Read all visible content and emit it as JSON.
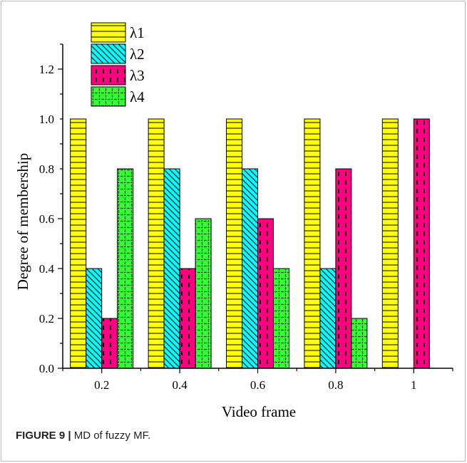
{
  "caption": {
    "label": "FIGURE 9 |",
    "text": "MD of fuzzy MF."
  },
  "chart_data": {
    "type": "bar",
    "title": "",
    "xlabel": "Video frame",
    "ylabel": "Degree of membership",
    "categories": [
      "0.2",
      "0.4",
      "0.6",
      "0.8",
      "1"
    ],
    "ylim": [
      0.0,
      1.3
    ],
    "yticks": [
      "0.0",
      "0.2",
      "0.4",
      "0.6",
      "0.8",
      "1.0",
      "1.2"
    ],
    "grid": false,
    "legend_position": "top-left",
    "series": [
      {
        "name": "λ1",
        "values": [
          1.0,
          1.0,
          1.0,
          1.0,
          1.0
        ],
        "color": "#ffff00",
        "pattern": "horizontal-lines"
      },
      {
        "name": "λ2",
        "values": [
          0.4,
          0.8,
          0.8,
          0.4,
          0.0
        ],
        "color": "#00ffff",
        "pattern": "diagonal-lines"
      },
      {
        "name": "λ3",
        "values": [
          0.2,
          0.4,
          0.6,
          0.8,
          1.0
        ],
        "color": "#ff0080",
        "pattern": "dashed-vertical"
      },
      {
        "name": "λ4",
        "values": [
          0.8,
          0.6,
          0.4,
          0.2,
          0.0
        ],
        "color": "#33ff33",
        "pattern": "dotted-grid"
      }
    ]
  }
}
